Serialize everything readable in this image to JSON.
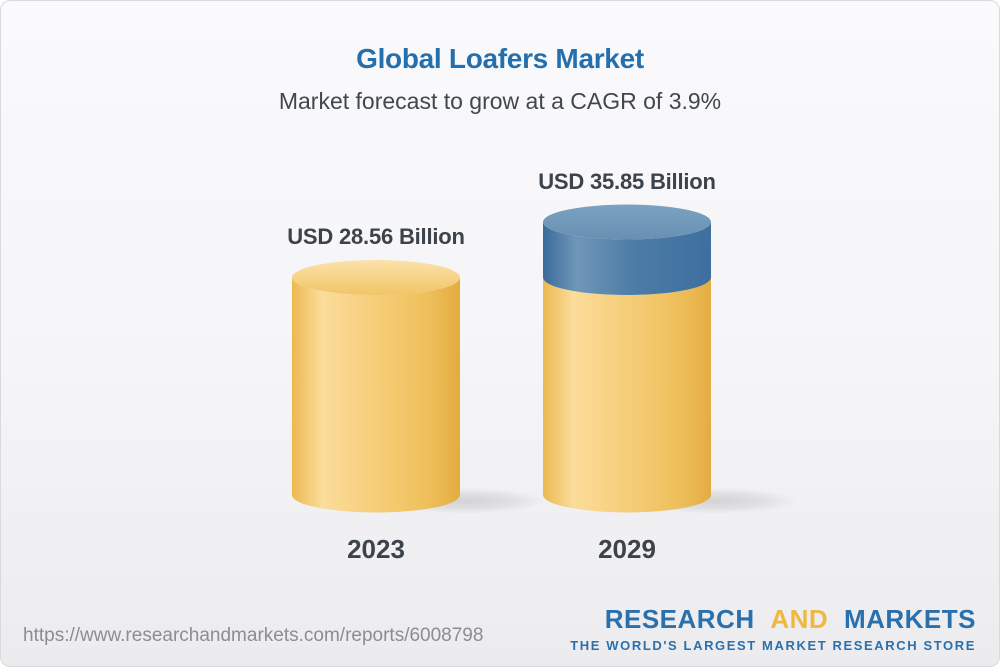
{
  "header": {
    "title": "Global Loafers Market",
    "subtitle": "Market forecast to grow at a CAGR of 3.9%"
  },
  "chart_data": {
    "type": "bar",
    "style": "3d-cylinder",
    "title": "Global Loafers Market",
    "subtitle": "Market forecast to grow at a CAGR of 3.9%",
    "cagr": "3.9%",
    "unit": "USD Billion",
    "categories": [
      "2023",
      "2029"
    ],
    "values": [
      28.56,
      35.85
    ],
    "value_labels": [
      "USD 28.56 Billion",
      "USD 35.85 Billion"
    ],
    "ylim": [
      0,
      35.85
    ],
    "grid": false,
    "legend": false,
    "growth_segment": {
      "bar": "2029",
      "from": 28.56,
      "to": 35.85,
      "color": "#4c7ba6"
    },
    "colors": {
      "base_yellow": "#f3c96f",
      "growth_blue": "#4c7ba6",
      "label_text": "#3c434a"
    }
  },
  "footer": {
    "url": "https://www.researchandmarkets.com/reports/6008798",
    "logo": {
      "word1": "RESEARCH",
      "word2": "AND",
      "word3": "MARKETS",
      "tagline": "THE WORLD'S LARGEST MARKET RESEARCH STORE",
      "blue": "#2a70ad",
      "gold": "#efb93f"
    }
  },
  "colors": {
    "title_blue": "#2470ae",
    "subtitle_gray": "#41474e",
    "url_gray": "#8d8d8f",
    "card_border": "#dadadc"
  }
}
